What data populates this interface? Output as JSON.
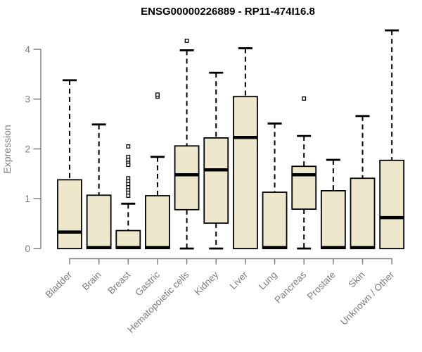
{
  "chart_data": {
    "type": "boxplot",
    "title": "ENSG00000226889 - RP11-474I16.8",
    "ylabel": "Expression",
    "xlabel": "",
    "ylim": [
      -0.18,
      4.45
    ],
    "yticks": [
      0,
      1,
      2,
      3,
      4
    ],
    "grid": false,
    "legend": false,
    "categories": [
      "Bladder",
      "Brain",
      "Breast",
      "Gastric",
      "Hematopoietic cells",
      "Kidney",
      "Liver",
      "Lung",
      "Pancreas",
      "Prostate",
      "Skin",
      "Unknown / Other"
    ],
    "series": [
      {
        "name": "Bladder",
        "low": 0,
        "q1": 0,
        "median": 0.33,
        "q3": 1.38,
        "high": 3.38,
        "outliers": []
      },
      {
        "name": "Brain",
        "low": 0,
        "q1": 0,
        "median": 0.02,
        "q3": 1.07,
        "high": 2.49,
        "outliers": []
      },
      {
        "name": "Breast",
        "low": 0,
        "q1": 0,
        "median": 0.02,
        "q3": 0.36,
        "high": 0.9,
        "outliers": [
          2.05,
          1.84,
          1.78,
          1.72,
          1.68,
          1.41,
          1.35,
          1.29,
          1.23,
          1.17,
          1.12,
          1.06
        ]
      },
      {
        "name": "Gastric",
        "low": 0,
        "q1": 0,
        "median": 0.02,
        "q3": 1.06,
        "high": 1.84,
        "outliers": [
          3.05,
          3.09
        ]
      },
      {
        "name": "Hematopoietic cells",
        "low": 0,
        "q1": 0.78,
        "median": 1.48,
        "q3": 2.06,
        "high": 3.98,
        "outliers": [
          4.17
        ]
      },
      {
        "name": "Kidney",
        "low": 0,
        "q1": 0.51,
        "median": 1.58,
        "q3": 2.22,
        "high": 3.53,
        "outliers": []
      },
      {
        "name": "Liver",
        "low": 0,
        "q1": 0,
        "median": 2.23,
        "q3": 3.05,
        "high": 4.02,
        "outliers": []
      },
      {
        "name": "Lung",
        "low": 0,
        "q1": 0,
        "median": 0.02,
        "q3": 1.13,
        "high": 2.51,
        "outliers": []
      },
      {
        "name": "Pancreas",
        "low": 0,
        "q1": 0.79,
        "median": 1.48,
        "q3": 1.65,
        "high": 2.26,
        "outliers": [
          3.01
        ]
      },
      {
        "name": "Prostate",
        "low": 0,
        "q1": 0,
        "median": 0.02,
        "q3": 1.16,
        "high": 1.78,
        "outliers": []
      },
      {
        "name": "Skin",
        "low": 0,
        "q1": 0,
        "median": 0.02,
        "q3": 1.41,
        "high": 2.66,
        "outliers": []
      },
      {
        "name": "Unknown / Other",
        "low": 0,
        "q1": 0,
        "median": 0.62,
        "q3": 1.77,
        "high": 4.38,
        "outliers": []
      }
    ],
    "colors": {
      "box_fill": "#EDE7CC",
      "box_stroke": "#000000",
      "median": "#000000",
      "whisker": "#000000",
      "outlier_fill": "#ffffff",
      "axis": "#808080",
      "tick_label": "#7d7d7d",
      "title": "#000000"
    }
  }
}
